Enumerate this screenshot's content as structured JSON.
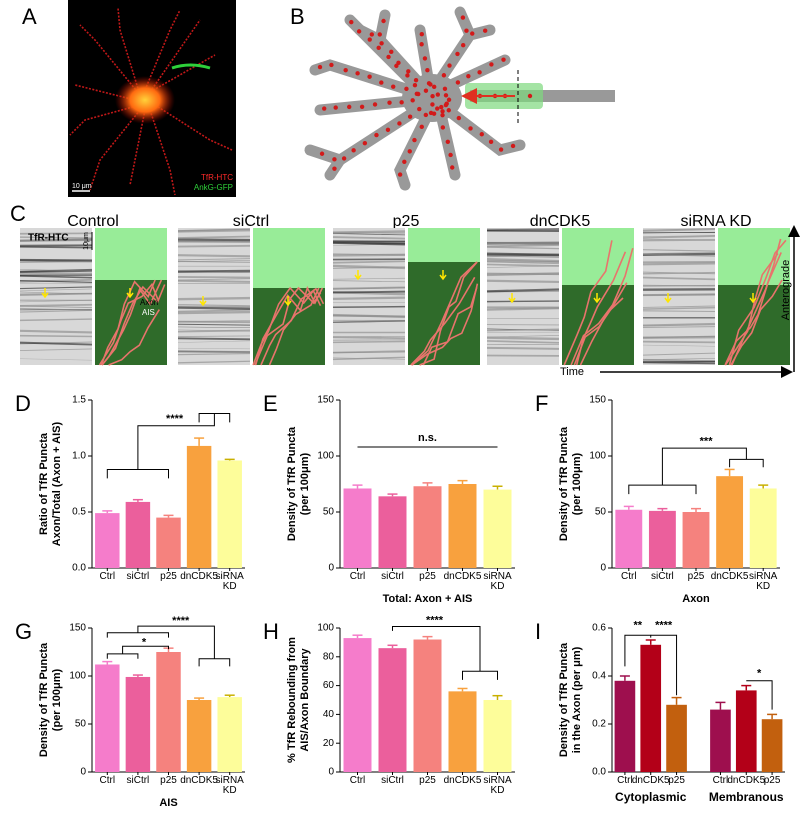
{
  "panels": {
    "A": {
      "label": "A",
      "legend": [
        "TfR-HTC",
        "AnkG-GFP"
      ],
      "scale": "10 μm"
    },
    "B": {
      "label": "B"
    },
    "C": {
      "label": "C",
      "conditions": [
        "Control",
        "siCtrl",
        "p25",
        "dnCDK5",
        "siRNA KD"
      ],
      "channel": "TfR-HTC",
      "scale": "10μm",
      "axon": "Axon",
      "ais": "AIS",
      "time": "Time",
      "direction": "Anterograde"
    }
  },
  "chart_data": [
    {
      "type": "bar",
      "panel": "D",
      "ylabel": [
        "Ratio of TfR Puncta",
        "Axon/Total (Axon + AIS)"
      ],
      "categories": [
        "Ctrl",
        "siCtrl",
        "p25",
        "dnCDK5",
        "siRNA KD"
      ],
      "values": [
        0.49,
        0.59,
        0.45,
        1.09,
        0.96
      ],
      "errors": [
        0.02,
        0.02,
        0.02,
        0.07,
        0.01
      ],
      "colors": [
        "#f57ccb",
        "#eb5f9c",
        "#f5827e",
        "#f8a13e",
        "#fdfd9a"
      ],
      "ylim": [
        0,
        1.5
      ],
      "yticks": [
        {
          "value": 0,
          "label": "0.0"
        },
        0.5,
        {
          "value": 1,
          "label": "1.0"
        },
        1.5
      ],
      "annotations": [
        "****"
      ]
    },
    {
      "type": "bar",
      "panel": "E",
      "ylabel": [
        "Density of TfR Puncta",
        "(per 100μm)"
      ],
      "xlabel": "Total: Axon + AIS",
      "categories": [
        "Ctrl",
        "siCtrl",
        "p25",
        "dnCDK5",
        "siRNA KD"
      ],
      "values": [
        71,
        64,
        73,
        75,
        70
      ],
      "errors": [
        3,
        2,
        3,
        3,
        3
      ],
      "colors": [
        "#f57ccb",
        "#eb5f9c",
        "#f5827e",
        "#f8a13e",
        "#fdfd9a"
      ],
      "ylim": [
        0,
        150
      ],
      "yticks": [
        0,
        50,
        100,
        150
      ],
      "annotations": [
        "n.s."
      ]
    },
    {
      "type": "bar",
      "panel": "F",
      "ylabel": [
        "Density of TfR Puncta",
        "(per 100μm)"
      ],
      "xlabel": "Axon",
      "categories": [
        "Ctrl",
        "siCtrl",
        "p25",
        "dnCDK5",
        "siRNA KD"
      ],
      "values": [
        52,
        51,
        50,
        82,
        71
      ],
      "errors": [
        3,
        2,
        3,
        6,
        3
      ],
      "colors": [
        "#f57ccb",
        "#eb5f9c",
        "#f5827e",
        "#f8a13e",
        "#fdfd9a"
      ],
      "ylim": [
        0,
        150
      ],
      "yticks": [
        0,
        50,
        100,
        150
      ],
      "annotations": [
        "***"
      ]
    },
    {
      "type": "bar",
      "panel": "G",
      "ylabel": [
        "Density of TfR Puncta",
        "(per 100μm)"
      ],
      "xlabel": "AIS",
      "categories": [
        "Ctrl",
        "siCtrl",
        "p25",
        "dnCDK5",
        "siRNA KD"
      ],
      "values": [
        112,
        99,
        125,
        75,
        78
      ],
      "errors": [
        3,
        2,
        4,
        2,
        2
      ],
      "colors": [
        "#f57ccb",
        "#eb5f9c",
        "#f5827e",
        "#f8a13e",
        "#fdfd9a"
      ],
      "ylim": [
        0,
        150
      ],
      "yticks": [
        0,
        50,
        100,
        150
      ],
      "annotations": [
        "*",
        "****"
      ]
    },
    {
      "type": "bar",
      "panel": "H",
      "ylabel": [
        "% TfR Rebounding from",
        "AIS/Axon Boundary"
      ],
      "categories": [
        "Ctrl",
        "siCtrl",
        "p25",
        "dnCDK5",
        "siRNA KD"
      ],
      "values": [
        93,
        86,
        92,
        56,
        50
      ],
      "errors": [
        2,
        2,
        2,
        2,
        3
      ],
      "colors": [
        "#f57ccb",
        "#eb5f9c",
        "#f5827e",
        "#f8a13e",
        "#fdfd9a"
      ],
      "ylim": [
        0,
        100
      ],
      "yticks": [
        0,
        20,
        40,
        60,
        80,
        100
      ],
      "annotations": [
        "****"
      ]
    },
    {
      "type": "bar",
      "panel": "I",
      "ylabel": [
        "Density of TfR Puncta",
        "in the Axon (per μm)"
      ],
      "groups": [
        "Cytoplasmic",
        "Membranous"
      ],
      "categories": [
        "Ctrl",
        "dnCDK5",
        "p25",
        "Ctrl",
        "dnCDK5",
        "p25"
      ],
      "values": [
        0.38,
        0.53,
        0.28,
        0.26,
        0.34,
        0.22
      ],
      "errors": [
        0.02,
        0.02,
        0.03,
        0.03,
        0.02,
        0.02
      ],
      "colors": [
        "#9e0f4e",
        "#b30018",
        "#c2600e",
        "#9e0f4e",
        "#b30018",
        "#c2600e"
      ],
      "ylim": [
        0,
        0.6
      ],
      "yticks": [
        {
          "value": 0,
          "label": "0.0"
        },
        0.2,
        0.4,
        0.6
      ],
      "annotations": [
        "**",
        "****",
        "*"
      ]
    }
  ]
}
